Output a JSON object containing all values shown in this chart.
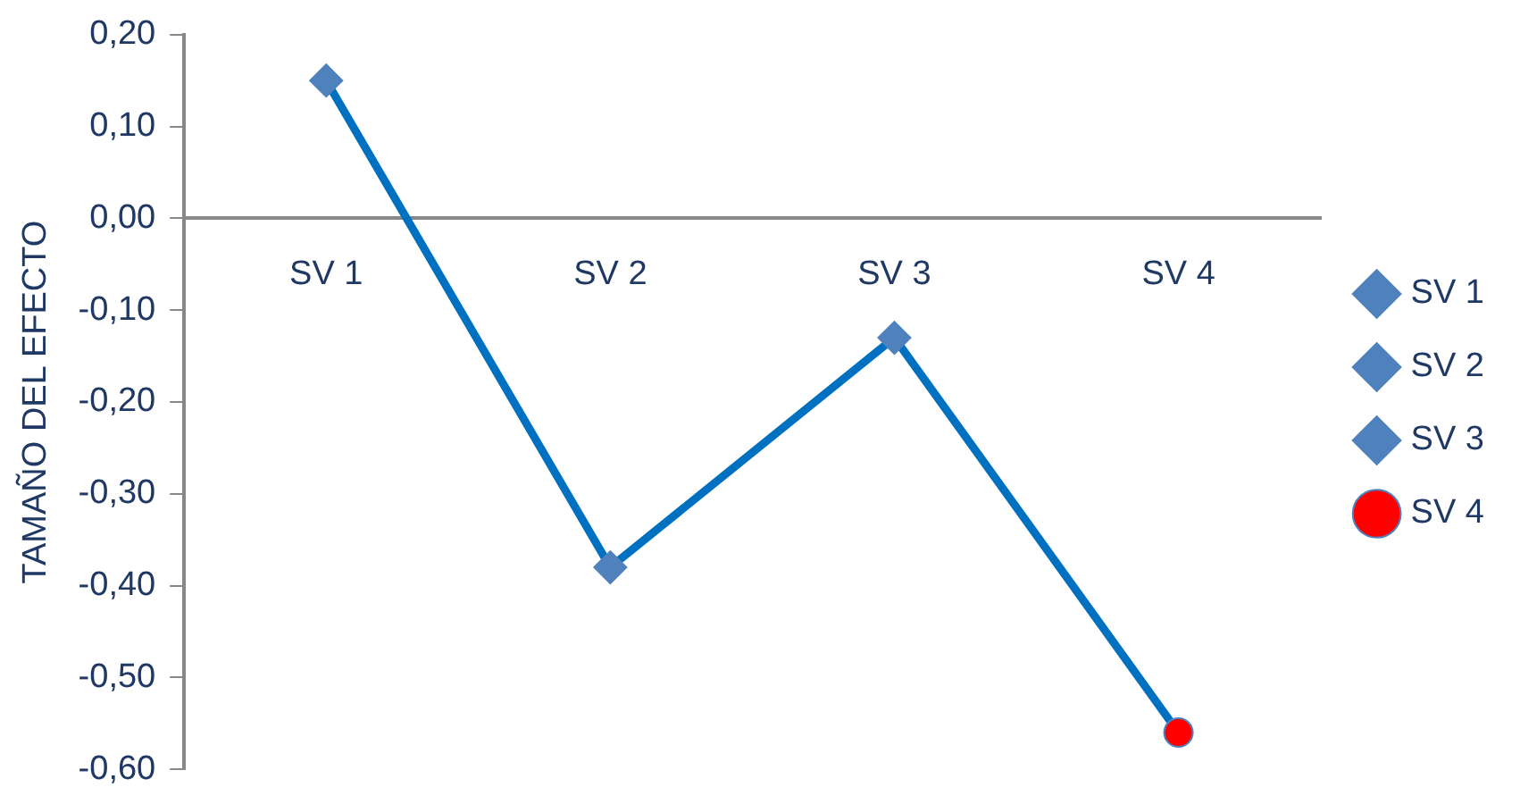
{
  "chart_data": {
    "type": "line",
    "ylabel": "TAMAÑO DEL EFECTO",
    "categories": [
      "SV 1",
      "SV 2",
      "SV 3",
      "SV 4"
    ],
    "series": [
      {
        "color": "#0070c0",
        "values": [
          0.15,
          -0.38,
          -0.13,
          -0.56
        ]
      },
      {
        "name": "SV 1",
        "type": "scatter",
        "x": [
          "SV 1"
        ],
        "values": [
          0.15
        ],
        "color": "#4f81bd",
        "marker": "diamond"
      },
      {
        "name": "SV 2",
        "type": "scatter",
        "x": [
          "SV 2"
        ],
        "values": [
          -0.38
        ],
        "color": "#4f81bd",
        "marker": "diamond"
      },
      {
        "name": "SV 3",
        "type": "scatter",
        "x": [
          "SV 3"
        ],
        "values": [
          -0.13
        ],
        "color": "#4f81bd",
        "marker": "diamond"
      },
      {
        "name": "SV 4",
        "type": "scatter",
        "x": [
          "SV 4"
        ],
        "values": [
          -0.56
        ],
        "color": "#ff0000",
        "marker": "circle"
      }
    ],
    "ylim": [
      -0.6,
      0.2
    ],
    "yticks": [
      {
        "value": 0.2,
        "label": "0,20"
      },
      {
        "value": 0.1,
        "label": "0,10"
      },
      {
        "value": 0,
        "label": "0,00"
      },
      {
        "value": -0.1,
        "label": "-0,10"
      },
      {
        "value": -0.2,
        "label": "-0,20"
      },
      {
        "value": -0.3,
        "label": "-0,30"
      },
      {
        "value": -0.4,
        "label": "-0,40"
      },
      {
        "value": -0.5,
        "label": "-0,50"
      },
      {
        "value": -0.6,
        "label": "-0,60"
      }
    ],
    "grid": false,
    "legend": "right",
    "line_style": "solid"
  }
}
